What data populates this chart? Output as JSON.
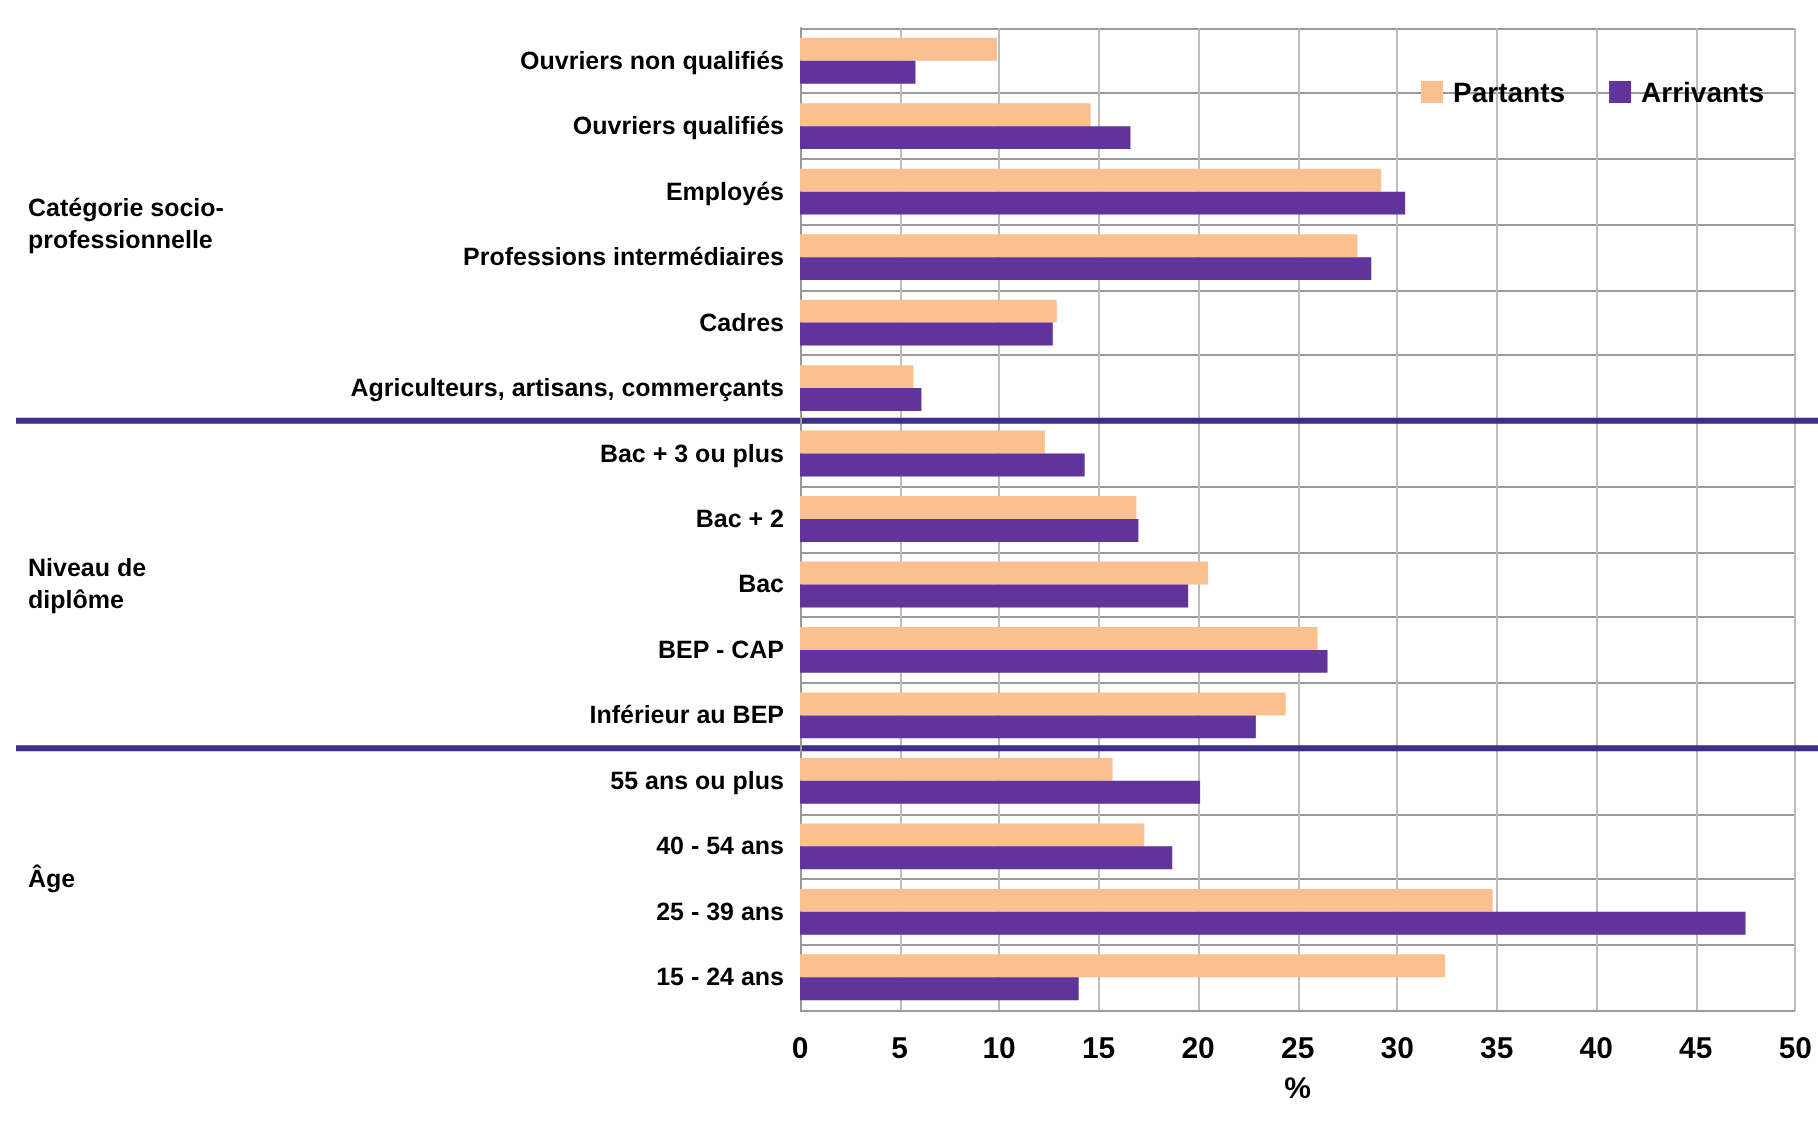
{
  "chart_data": {
    "type": "bar",
    "orientation": "horizontal",
    "xlabel": "%",
    "categories": [
      "Ouvriers non qualifiés",
      "Ouvriers qualifiés",
      "Employés",
      "Professions intermédiaires",
      "Cadres",
      "Agriculteurs, artisans, commerçants",
      "Bac + 3 ou plus",
      "Bac + 2",
      "Bac",
      "BEP - CAP",
      "Inférieur au BEP",
      "55 ans ou plus",
      "40 - 54 ans",
      "25 - 39 ans",
      "15 - 24 ans"
    ],
    "series": [
      {
        "name": "Partants",
        "color": "#fbc08f",
        "values": [
          9.9,
          14.6,
          29.2,
          28.0,
          12.9,
          5.7,
          12.3,
          16.9,
          20.5,
          26.0,
          24.4,
          15.7,
          17.3,
          34.8,
          32.4
        ]
      },
      {
        "name": "Arrivants",
        "color": "#60349a",
        "values": [
          5.8,
          16.6,
          30.4,
          28.7,
          12.7,
          6.1,
          14.3,
          17.0,
          19.5,
          26.5,
          22.9,
          20.1,
          18.7,
          47.5,
          14.0
        ]
      }
    ],
    "annotations": [
      "Catégorie socio-professionnelle",
      "Niveau de diplôme",
      "Âge"
    ],
    "xlim": [
      0,
      50
    ],
    "xticks": [
      0,
      5,
      10,
      15,
      20,
      25,
      30,
      35,
      40,
      45,
      50
    ],
    "grid": true,
    "legend": "top right"
  }
}
